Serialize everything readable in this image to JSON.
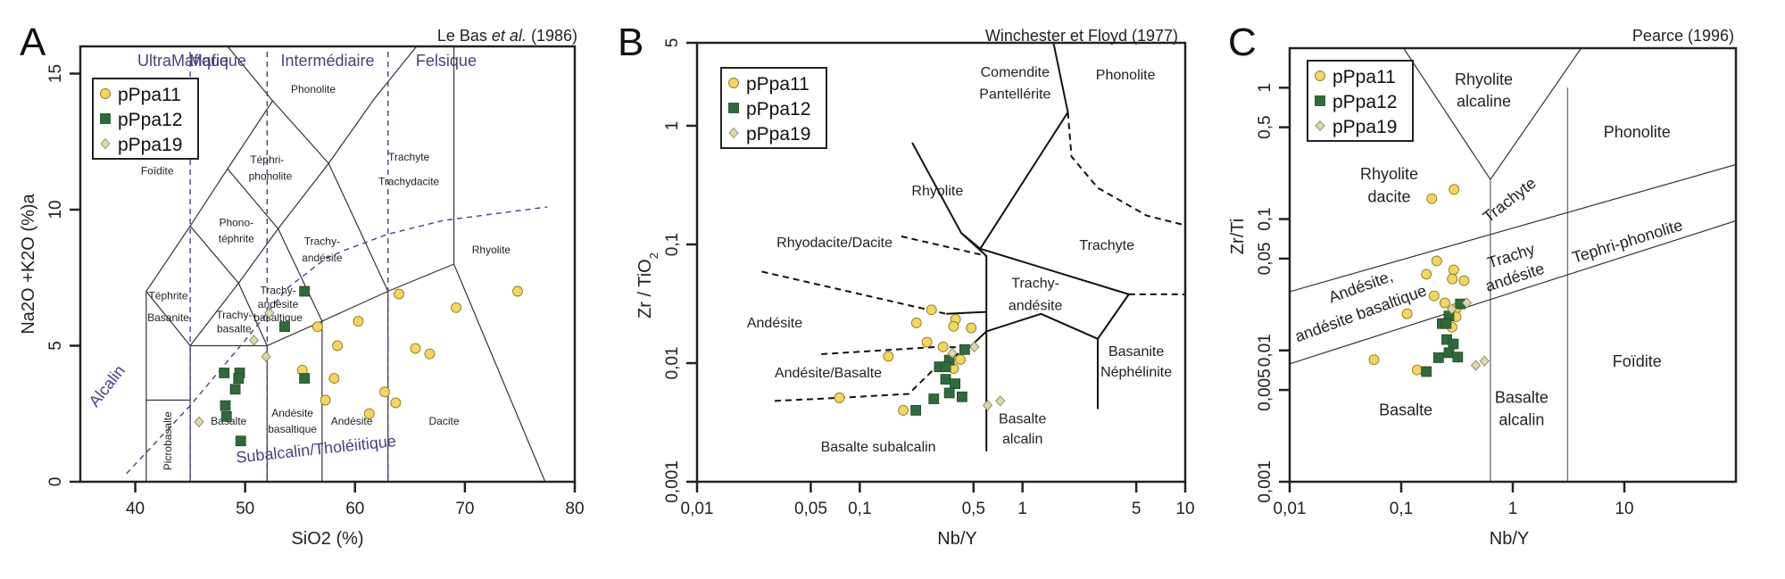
{
  "legend": [
    {
      "name": "pPpa11",
      "marker": "circle",
      "color": "#f6d55c"
    },
    {
      "name": "pPpa12",
      "marker": "square",
      "color": "#2f6b3a"
    },
    {
      "name": "pPpa19",
      "marker": "diamond",
      "color": "#ddd8a8"
    }
  ],
  "chart_data": [
    {
      "panel": "A",
      "type": "scatter",
      "title": "",
      "reference": "Le Bas et al. (1986)",
      "reference_parts": [
        "Le Bas ",
        "et al.",
        " (1986)"
      ],
      "xlabel": "SiO2 (%)",
      "ylabel": "Na2O +K2O (%)a",
      "xlim": [
        35,
        80
      ],
      "ylim": [
        0,
        16
      ],
      "xscale": "linear",
      "yscale": "linear",
      "xticks": [
        40,
        50,
        60,
        70,
        80
      ],
      "xtick_labels": [
        "40",
        "50",
        "60",
        "70",
        "80"
      ],
      "yticks": [
        0,
        5,
        10,
        15
      ],
      "ytick_labels": [
        "0",
        "5",
        "10",
        "15"
      ],
      "legend_position": "top-left",
      "category_labels": [
        "UltraMafique",
        "Mafique",
        "Intermédiaire",
        "Felsique"
      ],
      "series_labels_text": [
        "Alcalin",
        "Subalcalin/Tholéiitique"
      ],
      "field_labels": [
        "Foïdite",
        "Phonolite",
        "Téphri-",
        "phonolite",
        "Phono-",
        "téphrite",
        "Trachyte",
        "Trachydacite",
        "Trachy-",
        "andésite",
        "Rhyolite",
        "Téphrite",
        "Basanite",
        "Trachy-",
        "andésite",
        "basaltique",
        "Trachy-",
        "basalte",
        "Picrobasalte",
        "Basalte",
        "Andésite",
        "basaltique",
        "Andésite",
        "Dacite"
      ],
      "series": [
        {
          "name": "pPpa11",
          "points": [
            [
              64.0,
              6.9
            ],
            [
              69.2,
              6.4
            ],
            [
              74.8,
              7.0
            ],
            [
              60.3,
              5.9
            ],
            [
              56.6,
              5.7
            ],
            [
              58.4,
              5.0
            ],
            [
              65.5,
              4.9
            ],
            [
              66.8,
              4.7
            ],
            [
              55.2,
              4.1
            ],
            [
              58.1,
              3.8
            ],
            [
              57.3,
              3.0
            ],
            [
              62.7,
              3.3
            ],
            [
              63.7,
              2.9
            ],
            [
              61.3,
              2.5
            ]
          ]
        },
        {
          "name": "pPpa12",
          "points": [
            [
              55.4,
              7.0
            ],
            [
              53.6,
              5.7
            ],
            [
              48.1,
              4.0
            ],
            [
              49.5,
              4.0
            ],
            [
              49.4,
              3.8
            ],
            [
              49.1,
              3.4
            ],
            [
              48.2,
              2.8
            ],
            [
              48.3,
              2.4
            ],
            [
              49.6,
              1.5
            ],
            [
              55.4,
              3.8
            ]
          ]
        },
        {
          "name": "pPpa19",
          "points": [
            [
              50.8,
              5.2
            ],
            [
              51.9,
              4.6
            ],
            [
              45.8,
              2.2
            ],
            [
              52.2,
              6.2
            ]
          ]
        }
      ]
    },
    {
      "panel": "B",
      "type": "scatter",
      "title": "",
      "reference": "Winchester et Floyd (1977)",
      "xlabel": "Nb/Y",
      "ylabel": "Zr / TiO2",
      "xlim": [
        0.01,
        10
      ],
      "ylim": [
        0.001,
        5
      ],
      "xscale": "log",
      "yscale": "log",
      "xticks": [
        0.01,
        0.05,
        0.1,
        0.5,
        1,
        5,
        10
      ],
      "xtick_labels": [
        "0,01",
        "0,05",
        "0,1",
        "0,5",
        "1",
        "5",
        "10"
      ],
      "yticks": [
        0.001,
        0.01,
        0.1,
        1,
        5
      ],
      "ytick_labels": [
        "0,001",
        "0,01",
        "0,1",
        "1",
        "5"
      ],
      "legend_position": "top-left",
      "field_labels": [
        "Comendite",
        "Pantellérite",
        "Phonolite",
        "Rhyolite",
        "Trachyte",
        "Rhyodacite/Dacite",
        "Trachy-",
        "andésite",
        "Andésite",
        "Basanite",
        "Néphélinite",
        "Andésite/Basalte",
        "Basalte",
        "alcalin",
        "Basalte subalcalin"
      ],
      "series": [
        {
          "name": "pPpa11",
          "points": [
            [
              0.276,
              0.0281
            ],
            [
              0.223,
              0.0218
            ],
            [
              0.388,
              0.0234
            ],
            [
              0.377,
              0.0204
            ],
            [
              0.484,
              0.0198
            ],
            [
              0.259,
              0.015
            ],
            [
              0.325,
              0.0137
            ],
            [
              0.15,
              0.0114
            ],
            [
              0.415,
              0.0107
            ],
            [
              0.377,
              0.009
            ],
            [
              0.075,
              0.0051
            ],
            [
              0.185,
              0.004
            ]
          ]
        },
        {
          "name": "pPpa12",
          "points": [
            [
              0.441,
              0.013
            ],
            [
              0.355,
              0.0106
            ],
            [
              0.308,
              0.0093
            ],
            [
              0.337,
              0.0093
            ],
            [
              0.337,
              0.0073
            ],
            [
              0.385,
              0.0067
            ],
            [
              0.355,
              0.0056
            ],
            [
              0.285,
              0.005
            ],
            [
              0.425,
              0.0052
            ],
            [
              0.221,
              0.004
            ]
          ]
        },
        {
          "name": "pPpa19",
          "points": [
            [
              0.506,
              0.0137
            ],
            [
              0.371,
              0.0121
            ],
            [
              0.61,
              0.0044
            ],
            [
              0.73,
              0.0048
            ]
          ]
        }
      ]
    },
    {
      "panel": "C",
      "type": "scatter",
      "title": "",
      "reference": "Pearce (1996)",
      "xlabel": "Nb/Y",
      "ylabel": "Zr/Ti",
      "xlim": [
        0.01,
        100
      ],
      "ylim": [
        0.001,
        2
      ],
      "xscale": "log",
      "yscale": "log",
      "xticks": [
        0.01,
        0.1,
        1,
        10
      ],
      "xtick_labels": [
        "0,01",
        "0,1",
        "1",
        "10"
      ],
      "yticks": [
        0.001,
        0.005,
        0.01,
        0.05,
        0.1,
        0.5,
        1
      ],
      "ytick_labels": [
        "0,001",
        "0,005",
        "0,01",
        "0,05",
        "0,1",
        "0,5",
        "1"
      ],
      "legend_position": "top-left",
      "field_labels": [
        "Rhyolite",
        "alcaline",
        "Phonolite",
        "Rhyolite",
        "dacite",
        "Trachyte",
        "Trachy",
        "andésite",
        "Tephri-phonolite",
        "Andésite,",
        "andésite basaltique",
        "Foïdite",
        "Basalte",
        "Basalte",
        "alcalin"
      ],
      "series": [
        {
          "name": "pPpa11",
          "points": [
            [
              0.188,
              0.143
            ],
            [
              0.298,
              0.168
            ],
            [
              0.208,
              0.048
            ],
            [
              0.168,
              0.038
            ],
            [
              0.296,
              0.041
            ],
            [
              0.287,
              0.035
            ],
            [
              0.366,
              0.034
            ],
            [
              0.197,
              0.026
            ],
            [
              0.246,
              0.023
            ],
            [
              0.113,
              0.019
            ],
            [
              0.313,
              0.021
            ],
            [
              0.31,
              0.018
            ],
            [
              0.285,
              0.015
            ],
            [
              0.057,
              0.0085
            ],
            [
              0.139,
              0.0071
            ]
          ]
        },
        {
          "name": "pPpa12",
          "points": [
            [
              0.339,
              0.0226
            ],
            [
              0.268,
              0.0183
            ],
            [
              0.233,
              0.016
            ],
            [
              0.253,
              0.016
            ],
            [
              0.256,
              0.0121
            ],
            [
              0.293,
              0.0112
            ],
            [
              0.268,
              0.0096
            ],
            [
              0.216,
              0.0088
            ],
            [
              0.321,
              0.0089
            ],
            [
              0.168,
              0.0069
            ]
          ]
        },
        {
          "name": "pPpa19",
          "points": [
            [
              0.387,
              0.023
            ],
            [
              0.284,
              0.0207
            ],
            [
              0.466,
              0.0077
            ],
            [
              0.557,
              0.0083
            ]
          ]
        }
      ]
    }
  ],
  "panels": {
    "A": {
      "letter": "A"
    },
    "B": {
      "letter": "B"
    },
    "C": {
      "letter": "C"
    }
  }
}
